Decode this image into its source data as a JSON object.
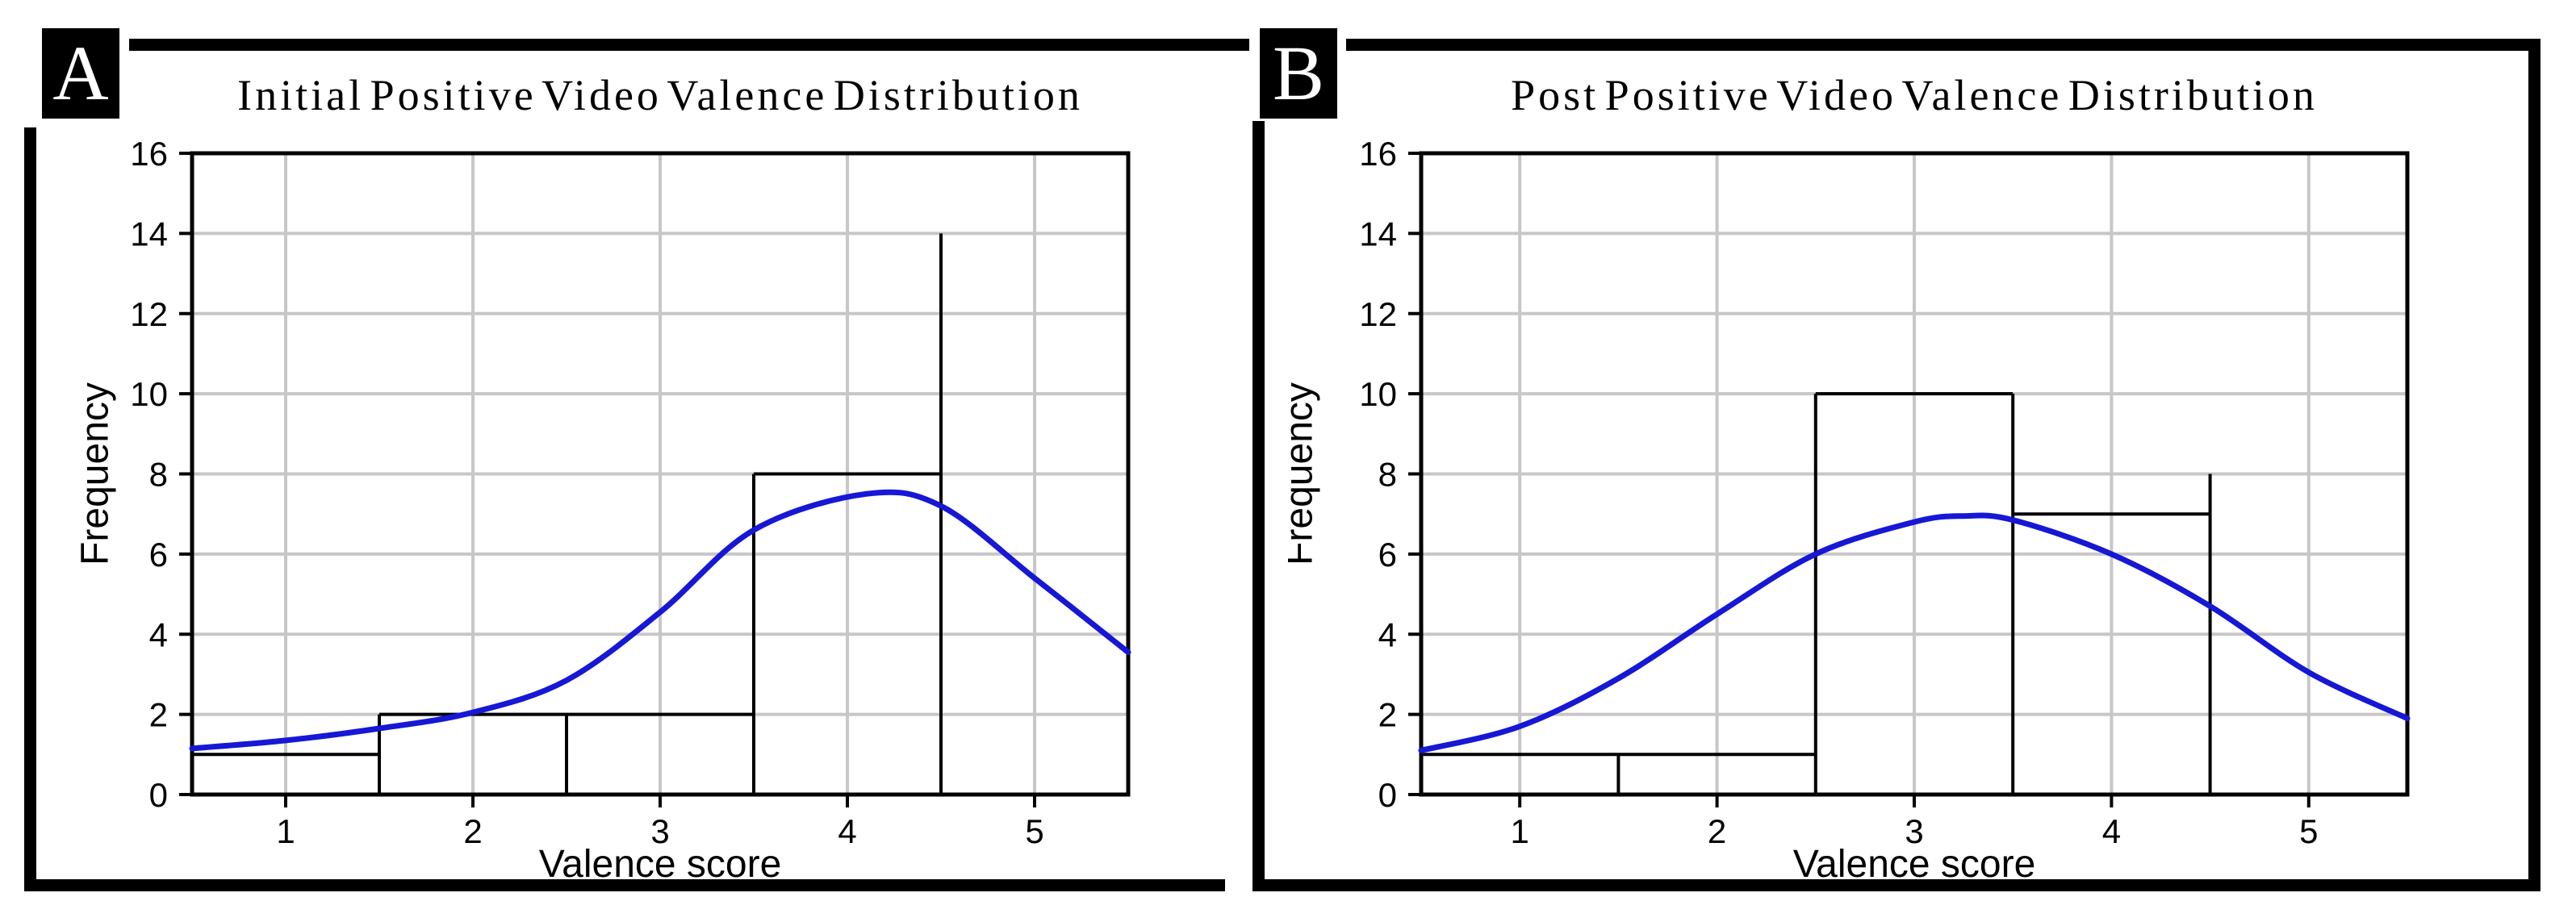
{
  "colors": {
    "ink": "#000000",
    "grid": "#c7c7c7",
    "curve": "#1717d6",
    "panel_label_bg": "#000000",
    "panel_label_fg": "#ffffff",
    "background": "#ffffff"
  },
  "chart_data": [
    {
      "type": "bar",
      "subtype": "histogram-with-fit-curve",
      "panel_label": "A",
      "title": "Initial Positive Video Valence Distribution",
      "xlabel": "Valence score",
      "ylabel": "Frequency",
      "xlim": [
        0.5,
        5.5
      ],
      "ylim": [
        0,
        16
      ],
      "x_ticks": [
        1,
        2,
        3,
        4,
        5
      ],
      "y_ticks": [
        0,
        2,
        4,
        6,
        8,
        10,
        12,
        14,
        16
      ],
      "x_gridlines": [
        1,
        2,
        3,
        4,
        5
      ],
      "y_gridlines": [
        2,
        4,
        6,
        8,
        10,
        12,
        14
      ],
      "grid": true,
      "bar_fill": "none",
      "legend": "none",
      "bins": [
        {
          "range": [
            0.5,
            1.5
          ],
          "count": 1
        },
        {
          "range": [
            1.5,
            2.5
          ],
          "count": 2
        },
        {
          "range": [
            2.5,
            3.5
          ],
          "count": 2
        },
        {
          "range": [
            3.5,
            4.5
          ],
          "count": 8
        }
      ],
      "spike": {
        "x": 4.5,
        "height": 14
      },
      "outline_segments": [
        [
          0.5,
          1,
          1.5,
          1
        ],
        [
          1.5,
          0,
          1.5,
          2
        ],
        [
          1.5,
          2,
          3.5,
          2
        ],
        [
          2.5,
          0,
          2.5,
          2
        ],
        [
          3.5,
          0,
          3.5,
          8
        ],
        [
          3.5,
          8,
          4.5,
          8
        ],
        [
          4.5,
          0,
          4.5,
          14
        ]
      ],
      "curve_points": [
        [
          0.5,
          1.15
        ],
        [
          1.0,
          1.35
        ],
        [
          1.5,
          1.65
        ],
        [
          2.0,
          2.05
        ],
        [
          2.5,
          2.85
        ],
        [
          3.0,
          4.55
        ],
        [
          3.5,
          6.6
        ],
        [
          4.1,
          7.5
        ],
        [
          4.5,
          7.2
        ],
        [
          5.0,
          5.4
        ],
        [
          5.5,
          3.55
        ]
      ],
      "curve_peak": {
        "x": 4.1,
        "y": 7.5
      },
      "curve_color": "#1717d6"
    },
    {
      "type": "bar",
      "subtype": "histogram-with-fit-curve",
      "panel_label": "B",
      "title": "Post Positive Video Valence Distribution",
      "xlabel": "Valence score",
      "ylabel": "Frequency",
      "xlim": [
        0.5,
        5.5
      ],
      "ylim": [
        0,
        16
      ],
      "x_ticks": [
        1,
        2,
        3,
        4,
        5
      ],
      "y_ticks": [
        0,
        2,
        4,
        6,
        8,
        10,
        12,
        14,
        16
      ],
      "x_gridlines": [
        1,
        2,
        3,
        4,
        5
      ],
      "y_gridlines": [
        2,
        4,
        6,
        8,
        10,
        12,
        14
      ],
      "grid": true,
      "bar_fill": "none",
      "legend": "none",
      "bins": [
        {
          "range": [
            0.5,
            1.5
          ],
          "count": 1
        },
        {
          "range": [
            1.5,
            2.5
          ],
          "count": 1
        },
        {
          "range": [
            2.5,
            3.5
          ],
          "count": 10
        },
        {
          "range": [
            3.5,
            4.5
          ],
          "count": 7
        }
      ],
      "spike": {
        "x": 4.5,
        "height": 8
      },
      "outline_segments": [
        [
          0.5,
          1,
          2.5,
          1
        ],
        [
          1.5,
          0,
          1.5,
          1
        ],
        [
          2.5,
          0,
          2.5,
          10
        ],
        [
          2.5,
          10,
          3.5,
          10
        ],
        [
          3.5,
          0,
          3.5,
          10
        ],
        [
          3.5,
          7,
          4.5,
          7
        ],
        [
          4.5,
          0,
          4.5,
          8
        ]
      ],
      "curve_points": [
        [
          0.5,
          1.1
        ],
        [
          1.0,
          1.7
        ],
        [
          1.5,
          2.9
        ],
        [
          2.0,
          4.5
        ],
        [
          2.5,
          6.0
        ],
        [
          3.0,
          6.8
        ],
        [
          3.25,
          6.95
        ],
        [
          3.5,
          6.85
        ],
        [
          4.0,
          6.0
        ],
        [
          4.5,
          4.7
        ],
        [
          5.0,
          3.05
        ],
        [
          5.5,
          1.9
        ]
      ],
      "curve_peak": {
        "x": 3.25,
        "y": 6.95
      },
      "curve_color": "#1717d6"
    }
  ]
}
